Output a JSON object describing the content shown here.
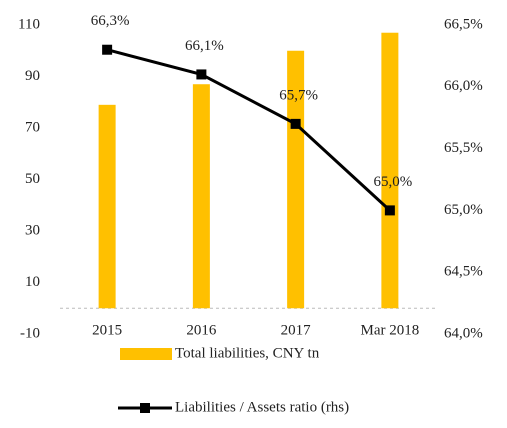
{
  "chart_data": {
    "type": "bar_line",
    "categories": [
      "2015",
      "2016",
      "2017",
      "Mar 2018"
    ],
    "series": [
      {
        "name": "Total liabilities, CNY tn",
        "type": "bar",
        "color": "#FFC000",
        "axis": "y",
        "values": [
          79,
          87,
          100,
          107
        ]
      },
      {
        "name": "Liabilities / Assets ratio (rhs)",
        "type": "line",
        "color": "#000000",
        "axis": "y2",
        "values": [
          66.3,
          66.1,
          65.7,
          65.0
        ],
        "value_labels": [
          "66,3%",
          "66,1%",
          "65,7%",
          "65,0%"
        ]
      }
    ],
    "ylim": [
      -10,
      110
    ],
    "yticks": [
      -10,
      10,
      30,
      50,
      70,
      90,
      110
    ],
    "y2lim": [
      64.0,
      66.5
    ],
    "y2ticks": [
      {
        "value": 64.0,
        "label": "64,0%"
      },
      {
        "value": 64.5,
        "label": "64,5%"
      },
      {
        "value": 65.0,
        "label": "65,0%"
      },
      {
        "value": 65.5,
        "label": "65,5%"
      },
      {
        "value": 66.0,
        "label": "66,0%"
      },
      {
        "value": 66.5,
        "label": "66,5%"
      }
    ],
    "legend": "bottom",
    "grid": false
  }
}
